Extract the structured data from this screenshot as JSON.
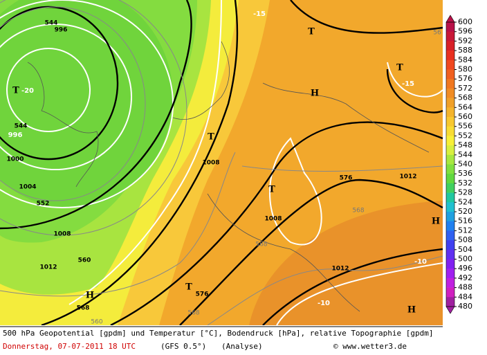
{
  "colorbar": {
    "labels": [
      600,
      596,
      592,
      588,
      584,
      580,
      576,
      572,
      568,
      564,
      560,
      556,
      552,
      548,
      544,
      540,
      536,
      532,
      528,
      524,
      520,
      516,
      512,
      508,
      504,
      500,
      496,
      492,
      488,
      484,
      480
    ],
    "colors": [
      "#b81048",
      "#c81838",
      "#d82028",
      "#e83020",
      "#f04820",
      "#f06020",
      "#f07820",
      "#f08c24",
      "#f0a028",
      "#f4b42c",
      "#f8c830",
      "#f8dc34",
      "#f8f038",
      "#d8f040",
      "#a8e840",
      "#80e040",
      "#60d840",
      "#40d060",
      "#20c8a0",
      "#20c0d0",
      "#20a0e0",
      "#2080f0",
      "#3060f0",
      "#4040f0",
      "#6030f0",
      "#8020f0",
      "#a020f0",
      "#c020e0",
      "#d020c0",
      "#a020a0"
    ]
  },
  "map": {
    "labels": [
      "544",
      "996",
      "T",
      "-20",
      "544",
      "996",
      "1000",
      "1004",
      "552",
      "1008",
      "1012",
      "560",
      "H",
      "568",
      "T",
      "1008",
      "T",
      "1008",
      "576",
      "1012",
      "T",
      "T",
      "-15",
      "H",
      "-15",
      "H",
      "-10",
      "1012",
      "T",
      "576",
      "-10",
      "H",
      "568",
      "568",
      "568",
      "560",
      "56"
    ]
  },
  "footer": {
    "title": "500 hPa Geopotential [gpdm] und Temperatur [°C], Bodendruck [hPa], relative Topographie [gpdm]",
    "date": "Donnerstag, 07-07-2011  18 UTC",
    "model": "(GFS 0.5°)",
    "run": "(Analyse)",
    "credit": "© www.wetter3.de"
  }
}
